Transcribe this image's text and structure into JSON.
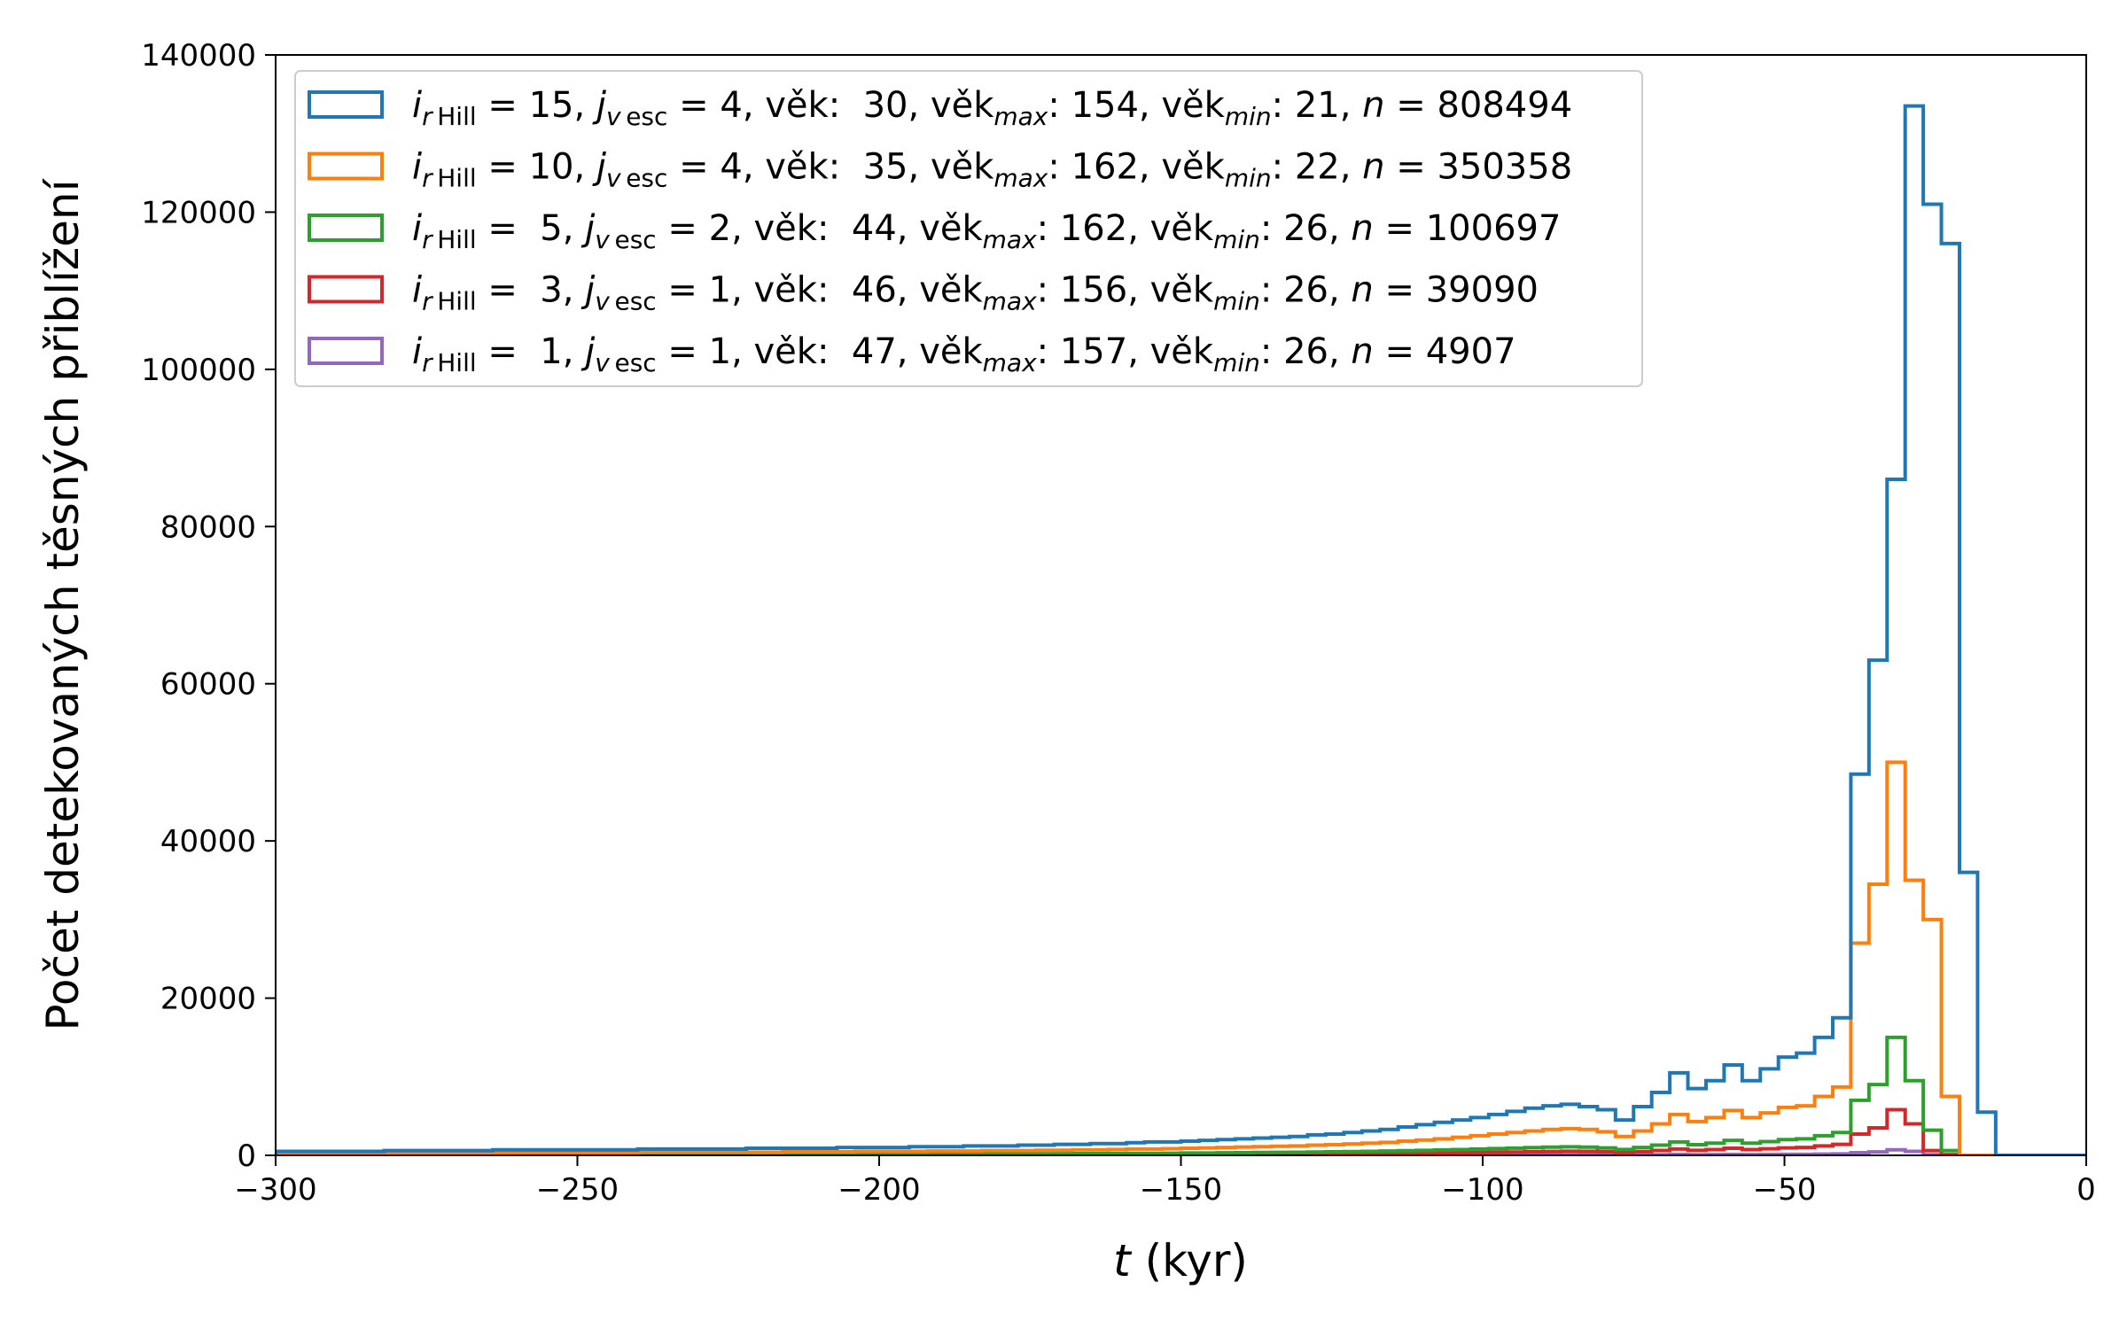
{
  "chart_data": {
    "type": "histogram",
    "title": "",
    "xlabel_var": "t",
    "xlabel_unit": " (kyr)",
    "ylabel": "Počet detekovaných těsných přiblížení",
    "xlim": [
      -300,
      0
    ],
    "ylim": [
      0,
      140000
    ],
    "x_ticks": [
      -300,
      -250,
      -200,
      -150,
      -100,
      -50,
      0
    ],
    "y_ticks": [
      0,
      20000,
      40000,
      60000,
      80000,
      100000,
      120000,
      140000
    ],
    "grid": false,
    "legend_position": "upper-left",
    "bin_width": 3,
    "bin_start": -300,
    "series": [
      {
        "key": "s1",
        "color": "#1f77b4",
        "legend": {
          "i": "15",
          "j": "4",
          "age": " 30",
          "age_max": "154",
          "age_min": "21",
          "n": "808494"
        },
        "values": [
          500,
          500,
          500,
          500,
          500,
          500,
          600,
          600,
          600,
          600,
          600,
          600,
          700,
          700,
          700,
          700,
          700,
          700,
          700,
          700,
          800,
          800,
          800,
          800,
          800,
          800,
          900,
          900,
          900,
          900,
          900,
          1000,
          1000,
          1000,
          1000,
          1100,
          1100,
          1100,
          1200,
          1200,
          1200,
          1300,
          1300,
          1400,
          1400,
          1500,
          1500,
          1600,
          1700,
          1700,
          1800,
          1900,
          2000,
          2100,
          2200,
          2300,
          2400,
          2600,
          2700,
          2900,
          3100,
          3300,
          3600,
          3900,
          4200,
          4500,
          4800,
          5200,
          5600,
          6000,
          6300,
          6500,
          6200,
          5800,
          4500,
          6200,
          8000,
          10500,
          8500,
          9500,
          11500,
          9500,
          11000,
          12500,
          13000,
          15000,
          17500,
          48500,
          63000,
          86000,
          133500,
          121000,
          116000,
          36000,
          5500,
          0,
          0,
          0,
          0,
          0
        ]
      },
      {
        "key": "s2",
        "color": "#ff7f0e",
        "legend": {
          "i": "10",
          "j": "4",
          "age": " 35",
          "age_max": "162",
          "age_min": "22",
          "n": "350358"
        },
        "values": [
          300,
          300,
          300,
          300,
          300,
          300,
          300,
          300,
          300,
          300,
          300,
          300,
          300,
          350,
          350,
          350,
          350,
          350,
          350,
          350,
          400,
          400,
          400,
          400,
          400,
          400,
          400,
          400,
          450,
          450,
          450,
          450,
          500,
          500,
          500,
          500,
          550,
          550,
          550,
          600,
          600,
          600,
          650,
          650,
          700,
          700,
          750,
          800,
          800,
          850,
          900,
          950,
          1000,
          1050,
          1100,
          1150,
          1200,
          1300,
          1350,
          1450,
          1550,
          1650,
          1800,
          1950,
          2100,
          2300,
          2500,
          2700,
          2900,
          3100,
          3300,
          3400,
          3300,
          3000,
          2400,
          3100,
          4000,
          5200,
          4300,
          4800,
          5700,
          4800,
          5400,
          6100,
          6300,
          7500,
          8700,
          27000,
          34500,
          50000,
          35000,
          30000,
          7500,
          0,
          0,
          0,
          0,
          0,
          0,
          0
        ]
      },
      {
        "key": "s3",
        "color": "#2ca02c",
        "legend": {
          "i": " 5",
          "j": "2",
          "age": " 44",
          "age_max": "162",
          "age_min": "26",
          "n": "100697"
        },
        "values": [
          100,
          100,
          100,
          100,
          100,
          100,
          100,
          100,
          100,
          100,
          100,
          100,
          100,
          100,
          120,
          120,
          120,
          120,
          120,
          120,
          120,
          120,
          130,
          130,
          130,
          130,
          130,
          140,
          140,
          140,
          140,
          150,
          150,
          150,
          160,
          160,
          170,
          170,
          180,
          180,
          190,
          200,
          200,
          210,
          220,
          230,
          240,
          250,
          260,
          270,
          290,
          300,
          320,
          340,
          360,
          380,
          400,
          420,
          450,
          480,
          510,
          550,
          590,
          640,
          690,
          740,
          800,
          860,
          920,
          980,
          1040,
          1080,
          1040,
          950,
          750,
          1000,
          1300,
          1700,
          1350,
          1550,
          1900,
          1550,
          1750,
          2000,
          2100,
          2500,
          2900,
          7000,
          9000,
          15000,
          9500,
          3200,
          600,
          0,
          0,
          0,
          0,
          0,
          0,
          0
        ]
      },
      {
        "key": "s4",
        "color": "#d62728",
        "legend": {
          "i": " 3",
          "j": "1",
          "age": " 46",
          "age_max": "156",
          "age_min": "26",
          "n": "39090"
        },
        "values": [
          40,
          40,
          40,
          40,
          40,
          40,
          40,
          40,
          40,
          40,
          40,
          40,
          40,
          40,
          45,
          45,
          45,
          45,
          45,
          45,
          45,
          45,
          50,
          50,
          50,
          50,
          50,
          55,
          55,
          55,
          55,
          60,
          60,
          60,
          65,
          65,
          70,
          70,
          75,
          75,
          80,
          80,
          85,
          90,
          90,
          95,
          100,
          105,
          110,
          115,
          120,
          130,
          140,
          150,
          160,
          170,
          180,
          190,
          200,
          215,
          230,
          250,
          270,
          290,
          310,
          340,
          370,
          400,
          430,
          460,
          490,
          520,
          500,
          460,
          360,
          480,
          620,
          800,
          640,
          730,
          900,
          740,
          830,
          950,
          1000,
          1200,
          1400,
          2700,
          3500,
          5800,
          4000,
          600,
          100,
          0,
          0,
          0,
          0,
          0,
          0,
          0
        ]
      },
      {
        "key": "s5",
        "color": "#9467bd",
        "legend": {
          "i": " 1",
          "j": "1",
          "age": " 47",
          "age_max": "157",
          "age_min": "26",
          "n": "4907"
        },
        "values": [
          5,
          5,
          5,
          5,
          5,
          5,
          5,
          5,
          5,
          5,
          5,
          5,
          5,
          5,
          6,
          6,
          6,
          6,
          6,
          6,
          6,
          6,
          6,
          7,
          7,
          7,
          7,
          7,
          7,
          7,
          8,
          8,
          8,
          8,
          8,
          9,
          9,
          9,
          10,
          10,
          10,
          11,
          11,
          12,
          12,
          13,
          13,
          14,
          15,
          15,
          16,
          17,
          18,
          19,
          20,
          22,
          23,
          25,
          27,
          29,
          31,
          33,
          36,
          39,
          42,
          45,
          49,
          53,
          57,
          61,
          65,
          68,
          66,
          62,
          50,
          64,
          82,
          106,
          85,
          96,
          118,
          98,
          110,
          126,
          132,
          155,
          180,
          340,
          440,
          700,
          500,
          80,
          10,
          0,
          0,
          0,
          0,
          0,
          0,
          0
        ]
      }
    ]
  }
}
